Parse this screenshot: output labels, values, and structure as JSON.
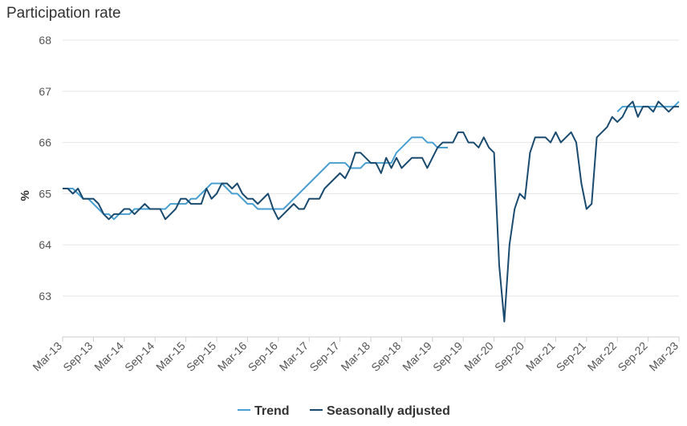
{
  "chart_data": {
    "type": "line",
    "title": "Participation rate",
    "ylabel": "%",
    "xlabel": "",
    "ylim": [
      62.2,
      68
    ],
    "yticks": [
      63,
      64,
      65,
      66,
      67,
      68
    ],
    "grid": true,
    "legend_position": "bottom-center",
    "x_tick_labels": [
      "Mar-13",
      "Sep-13",
      "Mar-14",
      "Sep-14",
      "Mar-15",
      "Sep-15",
      "Mar-16",
      "Sep-16",
      "Mar-17",
      "Sep-17",
      "Mar-18",
      "Sep-18",
      "Mar-19",
      "Sep-19",
      "Mar-20",
      "Sep-20",
      "Mar-21",
      "Sep-21",
      "Mar-22",
      "Sep-22",
      "Mar-23"
    ],
    "x_start": "Mar-13",
    "x_end": "Mar-23",
    "series": [
      {
        "name": "Trend",
        "color": "#4a9fd1",
        "values": [
          65.1,
          65.1,
          65.1,
          65.0,
          64.9,
          64.9,
          64.8,
          64.7,
          64.6,
          64.6,
          64.5,
          64.6,
          64.6,
          64.6,
          64.7,
          64.7,
          64.7,
          64.7,
          64.7,
          64.7,
          64.7,
          64.8,
          64.8,
          64.8,
          64.8,
          64.9,
          64.9,
          65.0,
          65.1,
          65.2,
          65.2,
          65.2,
          65.1,
          65.0,
          65.0,
          64.9,
          64.8,
          64.8,
          64.7,
          64.7,
          64.7,
          64.7,
          64.7,
          64.7,
          64.8,
          64.9,
          65.0,
          65.1,
          65.2,
          65.3,
          65.4,
          65.5,
          65.6,
          65.6,
          65.6,
          65.6,
          65.5,
          65.5,
          65.5,
          65.6,
          65.6,
          65.6,
          65.6,
          65.6,
          65.6,
          65.8,
          65.9,
          66.0,
          66.1,
          66.1,
          66.1,
          66.0,
          66.0,
          65.9,
          65.9,
          65.9,
          null,
          null,
          null,
          null,
          null,
          null,
          null,
          null,
          null,
          null,
          null,
          null,
          null,
          null,
          null,
          null,
          null,
          null,
          null,
          null,
          null,
          null,
          null,
          null,
          null,
          null,
          null,
          null,
          null,
          null,
          null,
          null,
          66.6,
          66.7,
          66.7,
          66.7,
          66.7,
          66.7,
          66.7,
          66.7,
          66.7,
          66.7,
          66.7,
          66.7,
          66.8
        ]
      },
      {
        "name": "Seasonally adjusted",
        "color": "#1a4a6e",
        "values": [
          65.1,
          65.1,
          65.0,
          65.1,
          64.9,
          64.9,
          64.9,
          64.8,
          64.6,
          64.5,
          64.6,
          64.6,
          64.7,
          64.7,
          64.6,
          64.7,
          64.8,
          64.7,
          64.7,
          64.7,
          64.5,
          64.6,
          64.7,
          64.9,
          64.9,
          64.8,
          64.8,
          64.8,
          65.1,
          64.9,
          65.0,
          65.2,
          65.2,
          65.1,
          65.2,
          65.0,
          64.9,
          64.9,
          64.8,
          64.9,
          65.0,
          64.7,
          64.5,
          64.6,
          64.7,
          64.8,
          64.7,
          64.7,
          64.9,
          64.9,
          64.9,
          65.1,
          65.2,
          65.3,
          65.4,
          65.3,
          65.5,
          65.8,
          65.8,
          65.7,
          65.6,
          65.6,
          65.4,
          65.7,
          65.5,
          65.7,
          65.5,
          65.6,
          65.7,
          65.7,
          65.7,
          65.5,
          65.7,
          65.9,
          66.0,
          66.0,
          66.0,
          66.2,
          66.2,
          66.0,
          66.0,
          65.9,
          66.1,
          65.9,
          65.8,
          63.6,
          62.5,
          64.0,
          64.7,
          65.0,
          64.9,
          65.8,
          66.1,
          66.1,
          66.1,
          66.0,
          66.2,
          66.0,
          66.1,
          66.2,
          66.0,
          65.2,
          64.7,
          64.8,
          66.1,
          66.2,
          66.3,
          66.5,
          66.4,
          66.5,
          66.7,
          66.8,
          66.5,
          66.7,
          66.7,
          66.6,
          66.8,
          66.7,
          66.6,
          66.7,
          66.7
        ]
      }
    ]
  }
}
